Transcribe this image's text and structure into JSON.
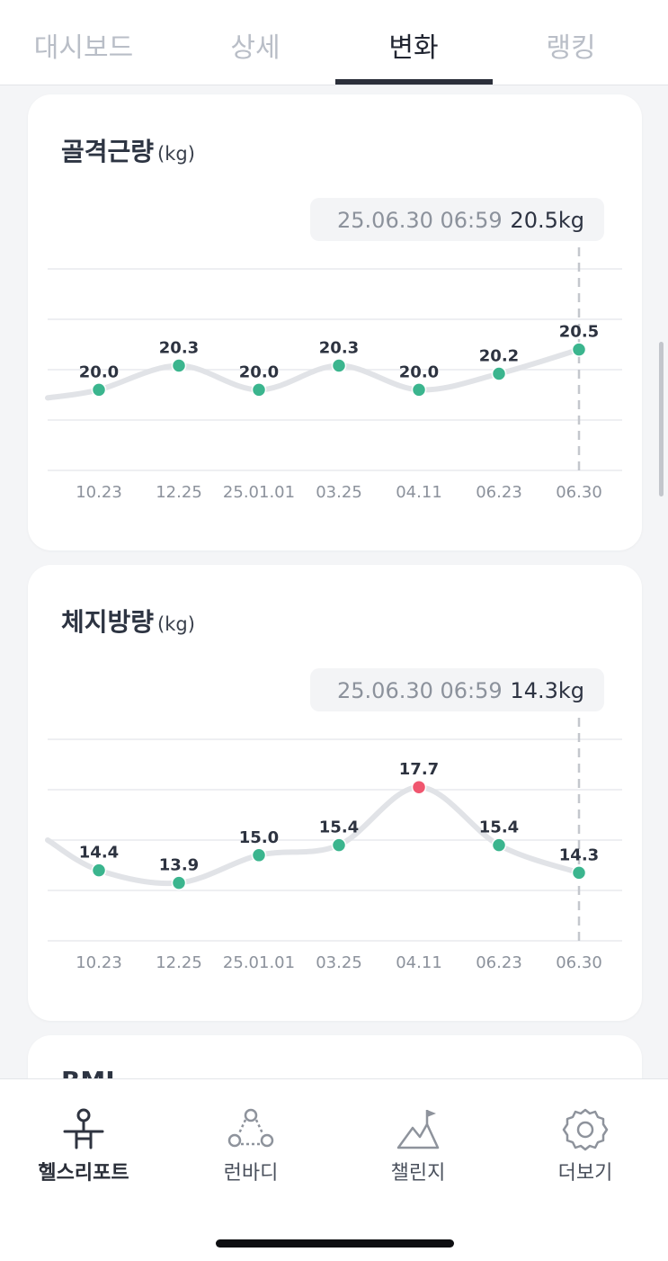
{
  "tabs": [
    {
      "label": "대시보드",
      "active": false
    },
    {
      "label": "상세",
      "active": false
    },
    {
      "label": "변화",
      "active": true
    },
    {
      "label": "랭킹",
      "active": false
    }
  ],
  "cards": [
    {
      "title": "골격근량",
      "unit": "(kg)",
      "tooltip": {
        "date": "25.06.30 06:59",
        "value": "20.5kg"
      }
    },
    {
      "title": "체지방량",
      "unit": "(kg)",
      "tooltip": {
        "date": "25.06.30 06:59",
        "value": "14.3kg"
      }
    },
    {
      "title": "BMI",
      "unit": ""
    }
  ],
  "chart_data": [
    {
      "type": "line",
      "title": "골격근량",
      "unit": "kg",
      "categories": [
        "10.23",
        "12.25",
        "25.01.01",
        "03.25",
        "04.11",
        "06.23",
        "06.30"
      ],
      "values": [
        20.0,
        20.3,
        20.0,
        20.3,
        20.0,
        20.2,
        20.5
      ],
      "ylim": [
        19.0,
        21.5
      ],
      "grid": true,
      "selected_index": 6,
      "lead_in_value": 19.9
    },
    {
      "type": "line",
      "title": "체지방량",
      "unit": "kg",
      "categories": [
        "10.23",
        "12.25",
        "25.01.01",
        "03.25",
        "04.11",
        "06.23",
        "06.30"
      ],
      "values": [
        14.4,
        13.9,
        15.0,
        15.4,
        17.7,
        15.4,
        14.3
      ],
      "ylim": [
        11.6,
        19.6
      ],
      "grid": true,
      "selected_index": 6,
      "highlight_index": 4,
      "lead_in_value": 15.6
    }
  ],
  "colors": {
    "point": "#3bb58e",
    "highlight_point": "#f0566f",
    "line": "#e1e3e7",
    "grid": "#e8eaee",
    "guide": "#c4c7cd"
  },
  "bottom_nav": [
    {
      "label": "헬스리포트",
      "icon": "health-report-icon",
      "active": true
    },
    {
      "label": "런바디",
      "icon": "run-body-icon",
      "active": false
    },
    {
      "label": "챌린지",
      "icon": "challenge-flag-icon",
      "active": false
    },
    {
      "label": "더보기",
      "icon": "gear-icon",
      "active": false
    }
  ]
}
